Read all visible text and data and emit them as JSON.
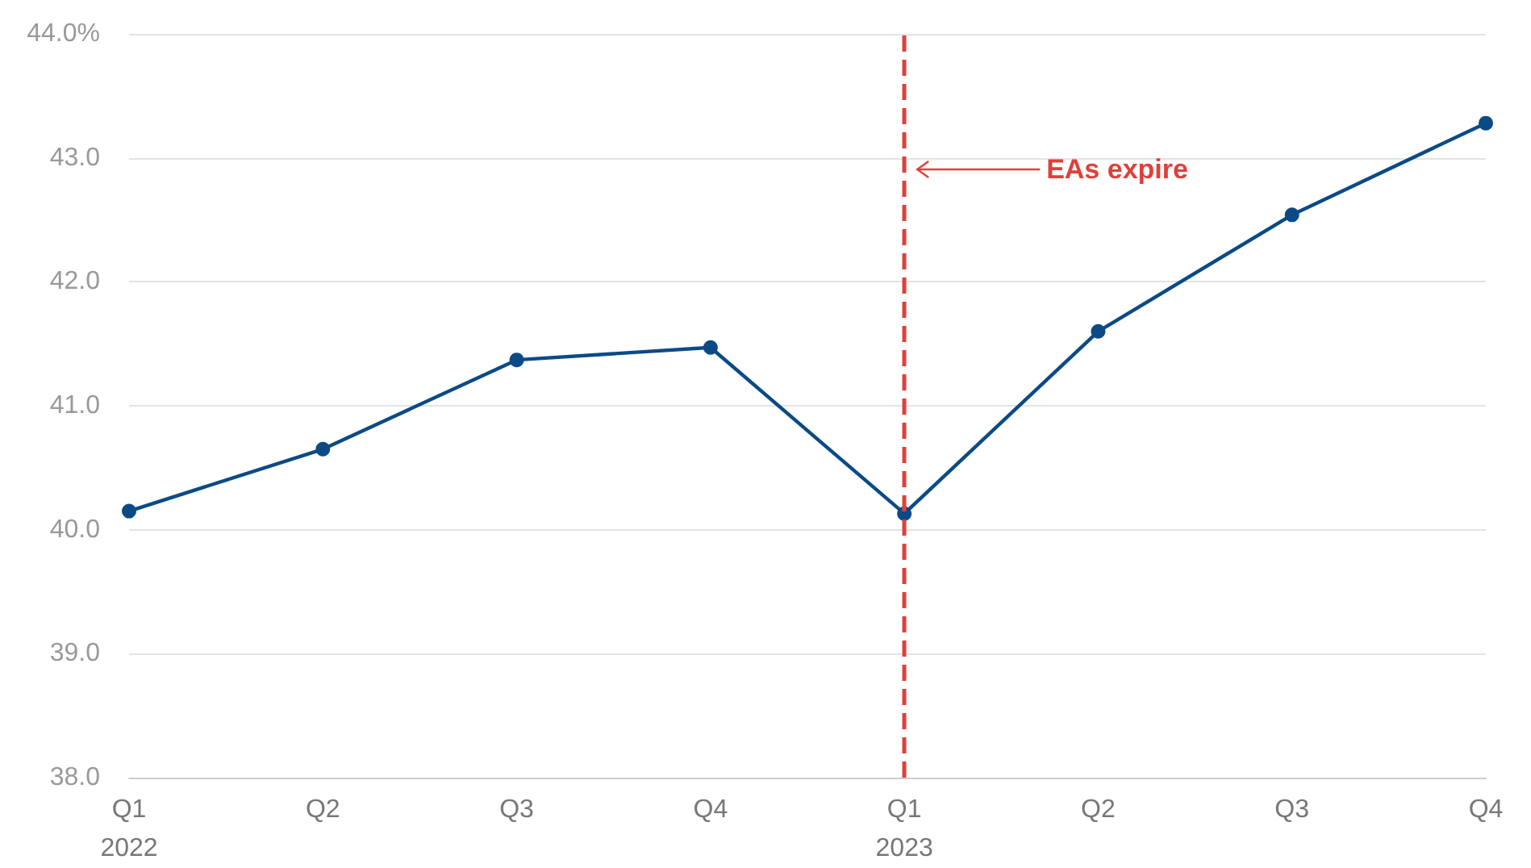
{
  "chart_data": {
    "type": "line",
    "categories": [
      "Q1\n2022",
      "Q2",
      "Q3",
      "Q4",
      "Q1\n2023",
      "Q2",
      "Q3",
      "Q4"
    ],
    "series": [
      {
        "color": "#0b4a85",
        "values": [
          40.15,
          40.65,
          41.37,
          41.47,
          40.13,
          41.6,
          42.54,
          43.28
        ]
      }
    ],
    "ylim": [
      38,
      44
    ],
    "yticks": [
      {
        "value": 38,
        "label": "38.0"
      },
      {
        "value": 39,
        "label": "39.0"
      },
      {
        "value": 40,
        "label": "40.0"
      },
      {
        "value": 41,
        "label": "41.0"
      },
      {
        "value": 42,
        "label": "42.0"
      },
      {
        "value": 43,
        "label": "43.0"
      },
      {
        "value": 44,
        "label": "44.0%"
      }
    ],
    "ref_lines": [
      {
        "axis": "x",
        "value": "Q1\n2023",
        "label": "EAs expire",
        "color": "#e0403a",
        "line_style": "dashed"
      }
    ],
    "grid": "y",
    "marker": "circle",
    "line_style": "solid"
  }
}
